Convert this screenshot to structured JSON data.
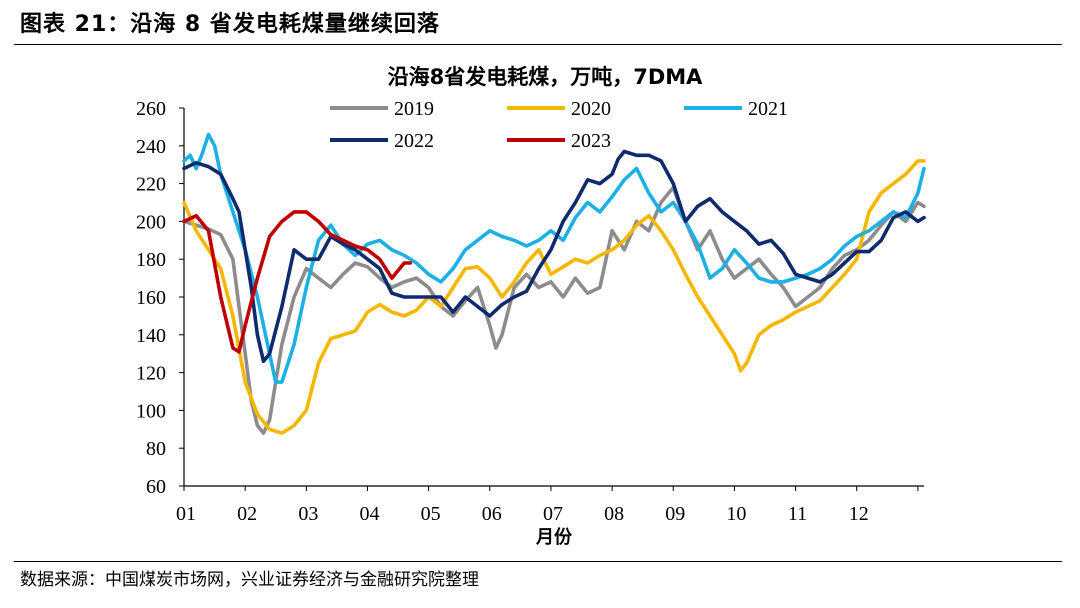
{
  "figure": {
    "title": "图表 21：沿海 8 省发电耗煤量继续回落",
    "source": "数据来源：中国煤炭市场网，兴业证券经济与金融研究院整理"
  },
  "chart_data": {
    "type": "line",
    "title": "沿海8省发电耗煤，万吨，7DMA",
    "xlabel": "月份",
    "ylabel": "",
    "ylim": [
      60,
      260
    ],
    "yticks": [
      60,
      80,
      100,
      120,
      140,
      160,
      180,
      200,
      220,
      240,
      260
    ],
    "xlim": [
      1,
      13.1
    ],
    "xticks": [
      "01",
      "02",
      "03",
      "04",
      "05",
      "06",
      "07",
      "08",
      "09",
      "10",
      "11",
      "12"
    ],
    "grid": false,
    "legend_position": "top",
    "series": [
      {
        "name": "2019",
        "color": "#8c8c8c",
        "x": [
          1.0,
          1.2,
          1.4,
          1.6,
          1.8,
          1.9,
          2.0,
          2.1,
          2.2,
          2.3,
          2.4,
          2.5,
          2.6,
          2.8,
          3.0,
          3.2,
          3.4,
          3.6,
          3.8,
          4.0,
          4.2,
          4.4,
          4.6,
          4.8,
          5.0,
          5.2,
          5.4,
          5.6,
          5.8,
          6.0,
          6.1,
          6.2,
          6.4,
          6.6,
          6.8,
          7.0,
          7.2,
          7.4,
          7.6,
          7.8,
          8.0,
          8.2,
          8.4,
          8.6,
          8.8,
          9.0,
          9.2,
          9.4,
          9.6,
          9.8,
          10.0,
          10.2,
          10.4,
          10.6,
          10.8,
          11.0,
          11.2,
          11.4,
          11.6,
          11.8,
          12.0,
          12.2,
          12.4,
          12.6,
          12.8,
          13.0,
          13.1
        ],
        "y": [
          200,
          198,
          196,
          193,
          180,
          155,
          130,
          105,
          92,
          88,
          95,
          115,
          135,
          160,
          175,
          170,
          165,
          172,
          178,
          176,
          170,
          165,
          168,
          170,
          165,
          155,
          150,
          158,
          165,
          145,
          133,
          140,
          165,
          172,
          165,
          168,
          160,
          170,
          162,
          165,
          195,
          185,
          200,
          195,
          210,
          218,
          200,
          185,
          195,
          180,
          170,
          175,
          180,
          172,
          165,
          155,
          160,
          165,
          175,
          182,
          185,
          190,
          198,
          205,
          200,
          210,
          208
        ]
      },
      {
        "name": "2020",
        "color": "#f5b700",
        "x": [
          1.0,
          1.2,
          1.4,
          1.6,
          1.8,
          2.0,
          2.2,
          2.4,
          2.6,
          2.8,
          3.0,
          3.2,
          3.4,
          3.6,
          3.8,
          4.0,
          4.2,
          4.4,
          4.6,
          4.8,
          5.0,
          5.2,
          5.4,
          5.6,
          5.8,
          6.0,
          6.2,
          6.4,
          6.6,
          6.8,
          7.0,
          7.2,
          7.4,
          7.6,
          7.8,
          8.0,
          8.2,
          8.4,
          8.6,
          8.8,
          9.0,
          9.2,
          9.4,
          9.6,
          9.8,
          10.0,
          10.1,
          10.2,
          10.4,
          10.6,
          10.8,
          11.0,
          11.2,
          11.4,
          11.6,
          11.8,
          12.0,
          12.2,
          12.4,
          12.6,
          12.8,
          13.0,
          13.1
        ],
        "y": [
          210,
          195,
          185,
          175,
          150,
          115,
          98,
          90,
          88,
          92,
          100,
          125,
          138,
          140,
          142,
          152,
          156,
          152,
          150,
          153,
          160,
          155,
          165,
          175,
          176,
          170,
          160,
          168,
          178,
          185,
          172,
          176,
          180,
          178,
          182,
          185,
          190,
          198,
          203,
          195,
          185,
          172,
          160,
          150,
          140,
          130,
          121,
          125,
          140,
          145,
          148,
          152,
          155,
          158,
          165,
          172,
          180,
          205,
          215,
          220,
          225,
          232,
          232
        ]
      },
      {
        "name": "2021",
        "color": "#1cb0e4",
        "x": [
          1.0,
          1.1,
          1.2,
          1.3,
          1.4,
          1.5,
          1.6,
          1.8,
          2.0,
          2.2,
          2.4,
          2.5,
          2.6,
          2.8,
          3.0,
          3.2,
          3.4,
          3.6,
          3.8,
          4.0,
          4.2,
          4.4,
          4.6,
          4.8,
          5.0,
          5.2,
          5.4,
          5.6,
          5.8,
          6.0,
          6.2,
          6.4,
          6.6,
          6.8,
          7.0,
          7.2,
          7.4,
          7.6,
          7.8,
          8.0,
          8.2,
          8.4,
          8.6,
          8.8,
          9.0,
          9.2,
          9.4,
          9.6,
          9.8,
          10.0,
          10.2,
          10.4,
          10.6,
          10.8,
          11.0,
          11.2,
          11.4,
          11.6,
          11.8,
          12.0,
          12.2,
          12.4,
          12.6,
          12.8,
          13.0,
          13.1
        ],
        "y": [
          232,
          235,
          228,
          236,
          246,
          240,
          225,
          205,
          185,
          160,
          130,
          115,
          115,
          135,
          165,
          190,
          198,
          188,
          182,
          188,
          190,
          185,
          182,
          178,
          172,
          168,
          175,
          185,
          190,
          195,
          192,
          190,
          187,
          190,
          195,
          190,
          202,
          210,
          205,
          213,
          222,
          228,
          215,
          205,
          210,
          200,
          188,
          170,
          175,
          185,
          178,
          170,
          168,
          168,
          170,
          172,
          175,
          180,
          187,
          192,
          195,
          200,
          205,
          202,
          215,
          228
        ]
      },
      {
        "name": "2022",
        "color": "#0f2b6e",
        "x": [
          1.0,
          1.2,
          1.4,
          1.6,
          1.8,
          1.9,
          2.0,
          2.1,
          2.2,
          2.3,
          2.4,
          2.6,
          2.8,
          3.0,
          3.2,
          3.4,
          3.6,
          3.8,
          4.0,
          4.2,
          4.4,
          4.6,
          4.8,
          5.0,
          5.2,
          5.4,
          5.6,
          5.8,
          6.0,
          6.2,
          6.4,
          6.6,
          6.8,
          7.0,
          7.2,
          7.4,
          7.6,
          7.8,
          8.0,
          8.1,
          8.2,
          8.4,
          8.6,
          8.8,
          9.0,
          9.2,
          9.4,
          9.6,
          9.8,
          10.0,
          10.2,
          10.4,
          10.6,
          10.8,
          11.0,
          11.2,
          11.4,
          11.6,
          11.8,
          12.0,
          12.2,
          12.4,
          12.6,
          12.8,
          13.0,
          13.1
        ],
        "y": [
          228,
          231,
          229,
          225,
          212,
          205,
          185,
          165,
          140,
          126,
          130,
          155,
          185,
          180,
          180,
          192,
          188,
          185,
          180,
          175,
          162,
          160,
          160,
          160,
          160,
          152,
          160,
          155,
          150,
          156,
          160,
          163,
          175,
          185,
          200,
          210,
          222,
          220,
          225,
          233,
          237,
          235,
          235,
          232,
          220,
          200,
          208,
          212,
          205,
          200,
          195,
          188,
          190,
          183,
          172,
          170,
          168,
          172,
          178,
          184,
          184,
          190,
          202,
          205,
          200,
          202
        ]
      },
      {
        "name": "2023",
        "color": "#c00000",
        "x": [
          1.0,
          1.2,
          1.4,
          1.6,
          1.8,
          1.9,
          2.0,
          2.2,
          2.4,
          2.6,
          2.8,
          3.0,
          3.2,
          3.4,
          3.6,
          3.8,
          4.0,
          4.2,
          4.4,
          4.6,
          4.7
        ],
        "y": [
          200,
          203,
          195,
          160,
          133,
          131,
          145,
          170,
          192,
          200,
          205,
          205,
          200,
          193,
          190,
          187,
          185,
          180,
          170,
          178,
          178
        ]
      }
    ]
  }
}
